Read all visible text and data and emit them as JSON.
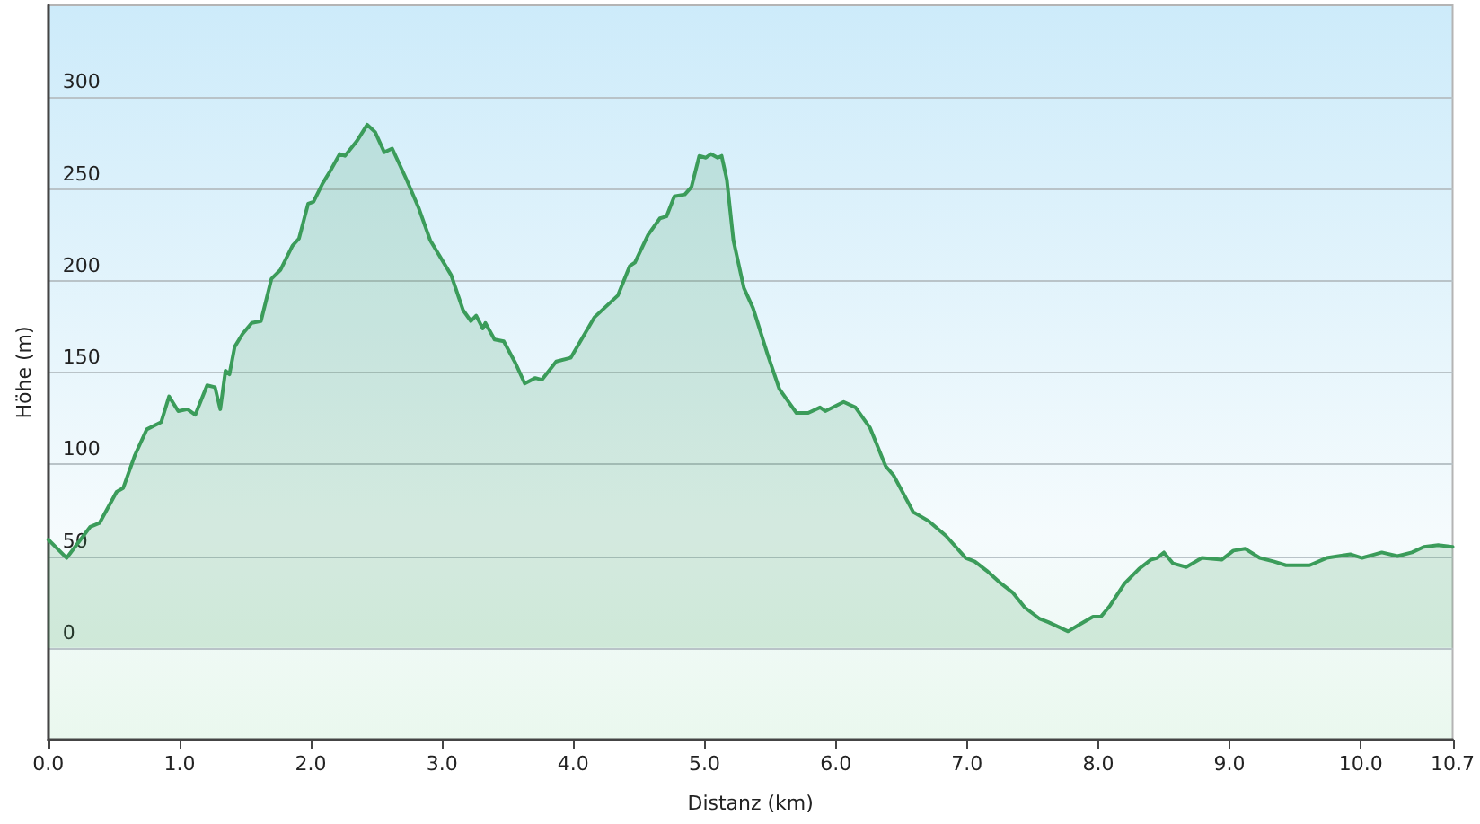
{
  "chart_data": {
    "type": "area",
    "xlabel": "Distanz (km)",
    "ylabel": "Höhe (m)",
    "color": "#3b9c5a",
    "line_style": "solid",
    "marker": "none",
    "grid": "y",
    "xlim": [
      0,
      10.7
    ],
    "ylim": [
      -50,
      350
    ],
    "xticks": [
      {
        "value": 0,
        "label": "0.0"
      },
      {
        "value": 1,
        "label": "1.0"
      },
      {
        "value": 2,
        "label": "2.0"
      },
      {
        "value": 3,
        "label": "3.0"
      },
      {
        "value": 4,
        "label": "4.0"
      },
      {
        "value": 5,
        "label": "5.0"
      },
      {
        "value": 6,
        "label": "6.0"
      },
      {
        "value": 7,
        "label": "7.0"
      },
      {
        "value": 8,
        "label": "8.0"
      },
      {
        "value": 9,
        "label": "9.0"
      },
      {
        "value": 10,
        "label": "10.0"
      },
      10.7
    ],
    "yticks": [
      0,
      50,
      100,
      150,
      200,
      250,
      300
    ],
    "x": [
      0,
      0.14,
      0.32,
      0.39,
      0.52,
      0.57,
      0.66,
      0.75,
      0.86,
      0.92,
      0.99,
      1.06,
      1.12,
      1.21,
      1.27,
      1.31,
      1.35,
      1.38,
      1.42,
      1.48,
      1.55,
      1.62,
      1.7,
      1.77,
      1.86,
      1.91,
      1.98,
      2.02,
      2.09,
      2.15,
      2.22,
      2.26,
      2.35,
      2.43,
      2.49,
      2.56,
      2.62,
      2.73,
      2.82,
      2.91,
      3.07,
      3.16,
      3.22,
      3.26,
      3.31,
      3.33,
      3.4,
      3.47,
      3.56,
      3.63,
      3.71,
      3.76,
      3.87,
      3.98,
      4.16,
      4.25,
      4.34,
      4.43,
      4.47,
      4.57,
      4.66,
      4.71,
      4.77,
      4.85,
      4.9,
      4.96,
      5.01,
      5.05,
      5.1,
      5.13,
      5.17,
      5.22,
      5.3,
      5.37,
      5.48,
      5.57,
      5.7,
      5.79,
      5.88,
      5.92,
      6.06,
      6.15,
      6.26,
      6.38,
      6.44,
      6.59,
      6.71,
      6.84,
      6.99,
      7.06,
      7.15,
      7.26,
      7.35,
      7.44,
      7.55,
      7.62,
      7.77,
      7.84,
      7.96,
      8.02,
      8.09,
      8.2,
      8.31,
      8.4,
      8.45,
      8.5,
      8.57,
      8.67,
      8.79,
      8.94,
      9.03,
      9.12,
      9.23,
      9.34,
      9.43,
      9.61,
      9.74,
      9.92,
      10.01,
      10.16,
      10.28,
      10.39,
      10.48,
      10.59,
      10.7
    ],
    "values": [
      59,
      49,
      66,
      68,
      85,
      87,
      105,
      119,
      123,
      137,
      129,
      130,
      127,
      143,
      142,
      130,
      151,
      149,
      164,
      171,
      177,
      178,
      201,
      206,
      219,
      223,
      242,
      243,
      253,
      260,
      269,
      268,
      276,
      285,
      281,
      270,
      272,
      255,
      240,
      222,
      203,
      184,
      178,
      181,
      174,
      177,
      168,
      167,
      155,
      144,
      147,
      146,
      156,
      158,
      180,
      186,
      192,
      208,
      210,
      225,
      234,
      235,
      246,
      247,
      251,
      268,
      267,
      269,
      267,
      268,
      255,
      222,
      196,
      185,
      160,
      141,
      128,
      128,
      131,
      129,
      134,
      131,
      120,
      99,
      94,
      74,
      69,
      61,
      49,
      47,
      42,
      35,
      30,
      22,
      16,
      14,
      9,
      12,
      17,
      17,
      23,
      35,
      43,
      48,
      49,
      52,
      46,
      44,
      49,
      48,
      53,
      54,
      49,
      47,
      45,
      45,
      49,
      51,
      49,
      52,
      50,
      52,
      55,
      56,
      55
    ]
  }
}
